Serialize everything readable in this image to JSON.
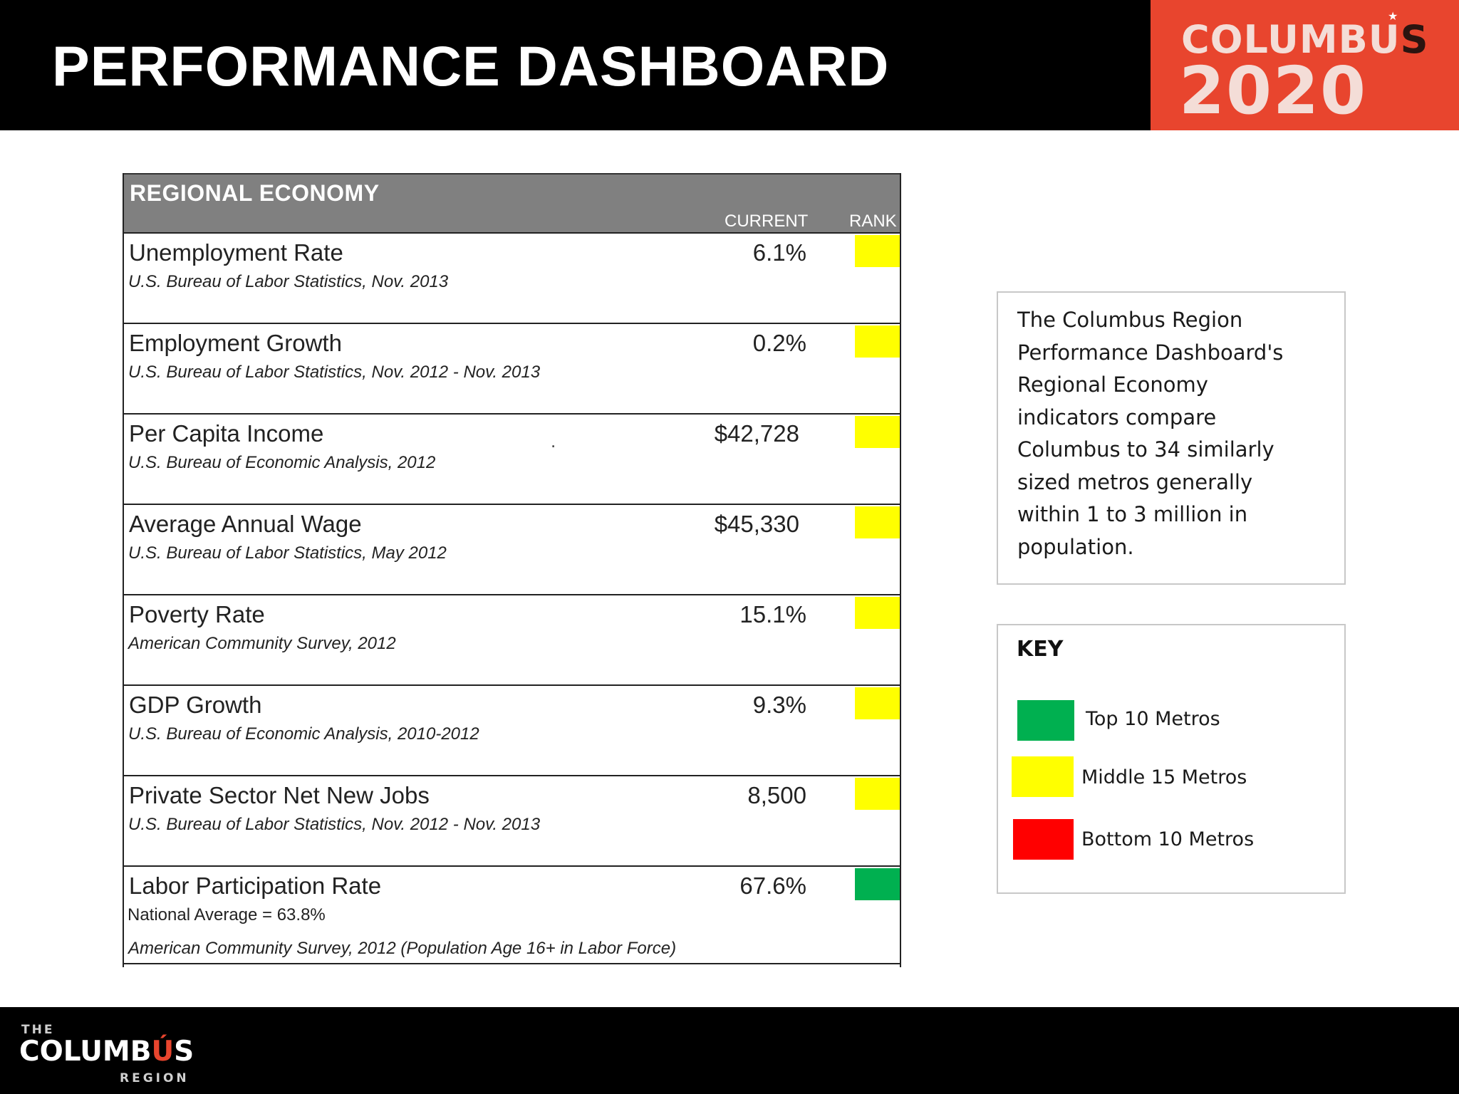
{
  "header": {
    "title": "PERFORMANCE DASHBOARD",
    "brand": {
      "word_main": "COLUMB",
      "word_u": "U",
      "word_s": "S",
      "year": "2020",
      "star": "★"
    }
  },
  "table": {
    "title": "REGIONAL ECONOMY",
    "col_current": "CURRENT",
    "col_rank": "RANK",
    "rows": [
      {
        "metric": "Unemployment Rate",
        "source": "U.S. Bureau of Labor Statistics, Nov. 2013",
        "value": "6.1%",
        "rank_color": "#ffff00"
      },
      {
        "metric": "Employment Growth",
        "source": "U.S. Bureau of Labor Statistics, Nov. 2012 - Nov. 2013",
        "value": "0.2%",
        "rank_color": "#ffff00"
      },
      {
        "metric": "Per Capita Income",
        "source": "U.S. Bureau of Economic Analysis, 2012",
        "value": "$42,728",
        "rank_color": "#ffff00",
        "stray_mark": "."
      },
      {
        "metric": "Average Annual Wage",
        "source": "U.S. Bureau of Labor Statistics, May 2012",
        "value": "$45,330",
        "rank_color": "#ffff00"
      },
      {
        "metric": "Poverty Rate",
        "source": "American Community Survey, 2012",
        "value": "15.1%",
        "rank_color": "#ffff00"
      },
      {
        "metric": "GDP Growth",
        "source": "U.S. Bureau of Economic Analysis, 2010-2012",
        "value": "9.3%",
        "rank_color": "#ffff00"
      },
      {
        "metric": "Private Sector Net New Jobs",
        "source": "U.S. Bureau of Labor Statistics, Nov. 2012 - Nov. 2013",
        "value": "8,500",
        "rank_color": "#ffff00"
      },
      {
        "metric": "Labor Participation Rate",
        "note": "National Average = 63.8%",
        "source": "American Community Survey, 2012 (Population Age 16+ in Labor Force)",
        "value": "67.6%",
        "rank_color": "#00b050"
      }
    ]
  },
  "description": {
    "lines": [
      "The Columbus Region",
      "Performance Dashboard's",
      "Regional Economy",
      "indicators compare",
      "Columbus to 34 similarly",
      "sized metros generally",
      "within 1 to 3 million in",
      "population."
    ]
  },
  "key": {
    "title": "KEY",
    "items": [
      {
        "label": "Top 10 Metros",
        "color": "#00b050"
      },
      {
        "label": "Middle 15 Metros",
        "color": "#ffff00"
      },
      {
        "label": "Bottom 10 Metros",
        "color": "#ff0000"
      }
    ]
  },
  "footer": {
    "the": "THE",
    "word_main": "COLUMB",
    "word_u": "Ú",
    "word_s": "S",
    "region": "REGION"
  }
}
